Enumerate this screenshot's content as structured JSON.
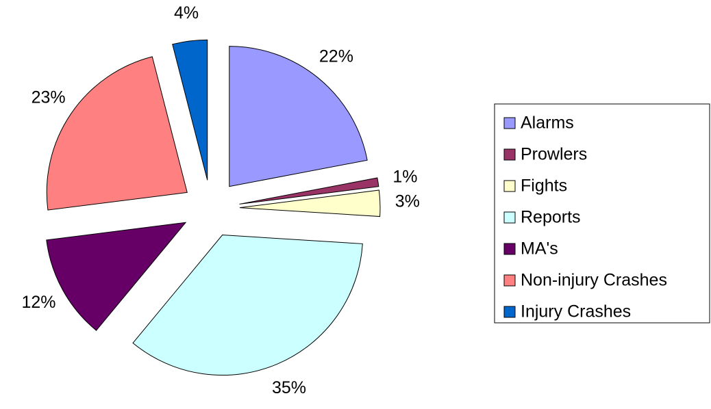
{
  "chart_data": {
    "type": "pie",
    "categories": [
      "Alarms",
      "Prowlers",
      "Fights",
      "Reports",
      "MA's",
      "Non-injury Crashes",
      "Injury Crashes"
    ],
    "values": [
      22,
      1,
      3,
      35,
      12,
      23,
      4
    ],
    "value_labels": [
      "22%",
      "1%",
      "3%",
      "35%",
      "12%",
      "23%",
      "4%"
    ],
    "colors": [
      "#9999ff",
      "#993366",
      "#ffffcc",
      "#ccffff",
      "#660066",
      "#ff8080",
      "#0066cc"
    ],
    "legend": "right"
  }
}
